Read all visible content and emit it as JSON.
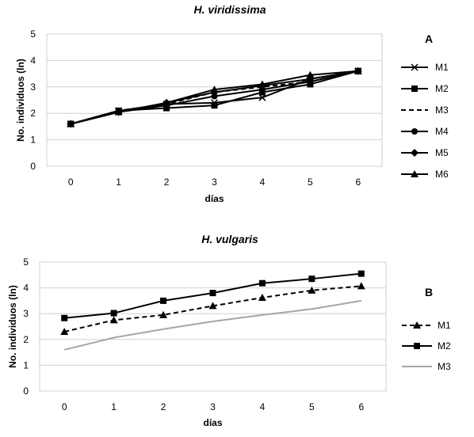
{
  "chart_data": [
    {
      "type": "line",
      "panel_label": "A",
      "title": "H. viridissima",
      "xlabel": "días",
      "ylabel": "No. individuos (ln)",
      "x": [
        0,
        1,
        2,
        3,
        4,
        5,
        6
      ],
      "x_tick_labels": [
        "0",
        "1",
        "2",
        "3",
        "4",
        "5",
        "6"
      ],
      "ylim": [
        0,
        5
      ],
      "y_tick_labels": [
        "0",
        "1",
        "2",
        "3",
        "4",
        "5"
      ],
      "grid": true,
      "legend_position": "right",
      "series": [
        {
          "name": "M1",
          "marker": "x",
          "dash": "solid",
          "color": "#000000",
          "values": [
            1.6,
            2.1,
            2.35,
            2.4,
            2.6,
            3.3,
            3.6
          ]
        },
        {
          "name": "M2",
          "marker": "square",
          "dash": "solid",
          "color": "#000000",
          "values": [
            1.6,
            2.1,
            2.2,
            2.3,
            2.8,
            3.1,
            3.6
          ]
        },
        {
          "name": "M3",
          "marker": "none",
          "dash": "dashed",
          "color": "#000000",
          "values": [
            1.6,
            2.1,
            2.35,
            2.8,
            3.0,
            3.2,
            3.6
          ]
        },
        {
          "name": "M4",
          "marker": "circle",
          "dash": "solid",
          "color": "#000000",
          "values": [
            1.6,
            2.05,
            2.3,
            2.65,
            2.9,
            3.2,
            3.6
          ]
        },
        {
          "name": "M5",
          "marker": "diamond",
          "dash": "solid",
          "color": "#000000",
          "values": [
            1.6,
            2.05,
            2.4,
            2.8,
            3.05,
            3.3,
            3.6
          ]
        },
        {
          "name": "M6",
          "marker": "triangle",
          "dash": "solid",
          "color": "#000000",
          "values": [
            1.6,
            2.05,
            2.4,
            2.9,
            3.1,
            3.45,
            3.6
          ]
        }
      ]
    },
    {
      "type": "line",
      "panel_label": "B",
      "title": "H. vulgaris",
      "xlabel": "días",
      "ylabel": "No. individuos (ln)",
      "x": [
        0,
        1,
        2,
        3,
        4,
        5,
        6
      ],
      "x_tick_labels": [
        "0",
        "1",
        "2",
        "3",
        "4",
        "5",
        "6"
      ],
      "ylim": [
        0,
        5
      ],
      "y_tick_labels": [
        "0",
        "1",
        "2",
        "3",
        "4",
        "5"
      ],
      "grid": true,
      "legend_position": "right",
      "series": [
        {
          "name": "M1",
          "marker": "triangle",
          "dash": "dashed",
          "color": "#000000",
          "values": [
            2.3,
            2.75,
            2.95,
            3.3,
            3.62,
            3.9,
            4.07
          ]
        },
        {
          "name": "M2",
          "marker": "square",
          "dash": "solid",
          "color": "#000000",
          "values": [
            2.83,
            3.02,
            3.5,
            3.8,
            4.18,
            4.35,
            4.55
          ]
        },
        {
          "name": "M3",
          "marker": "none",
          "dash": "solid",
          "color": "#a6a6a6",
          "values": [
            1.6,
            2.07,
            2.4,
            2.7,
            2.95,
            3.18,
            3.5
          ]
        }
      ]
    }
  ]
}
